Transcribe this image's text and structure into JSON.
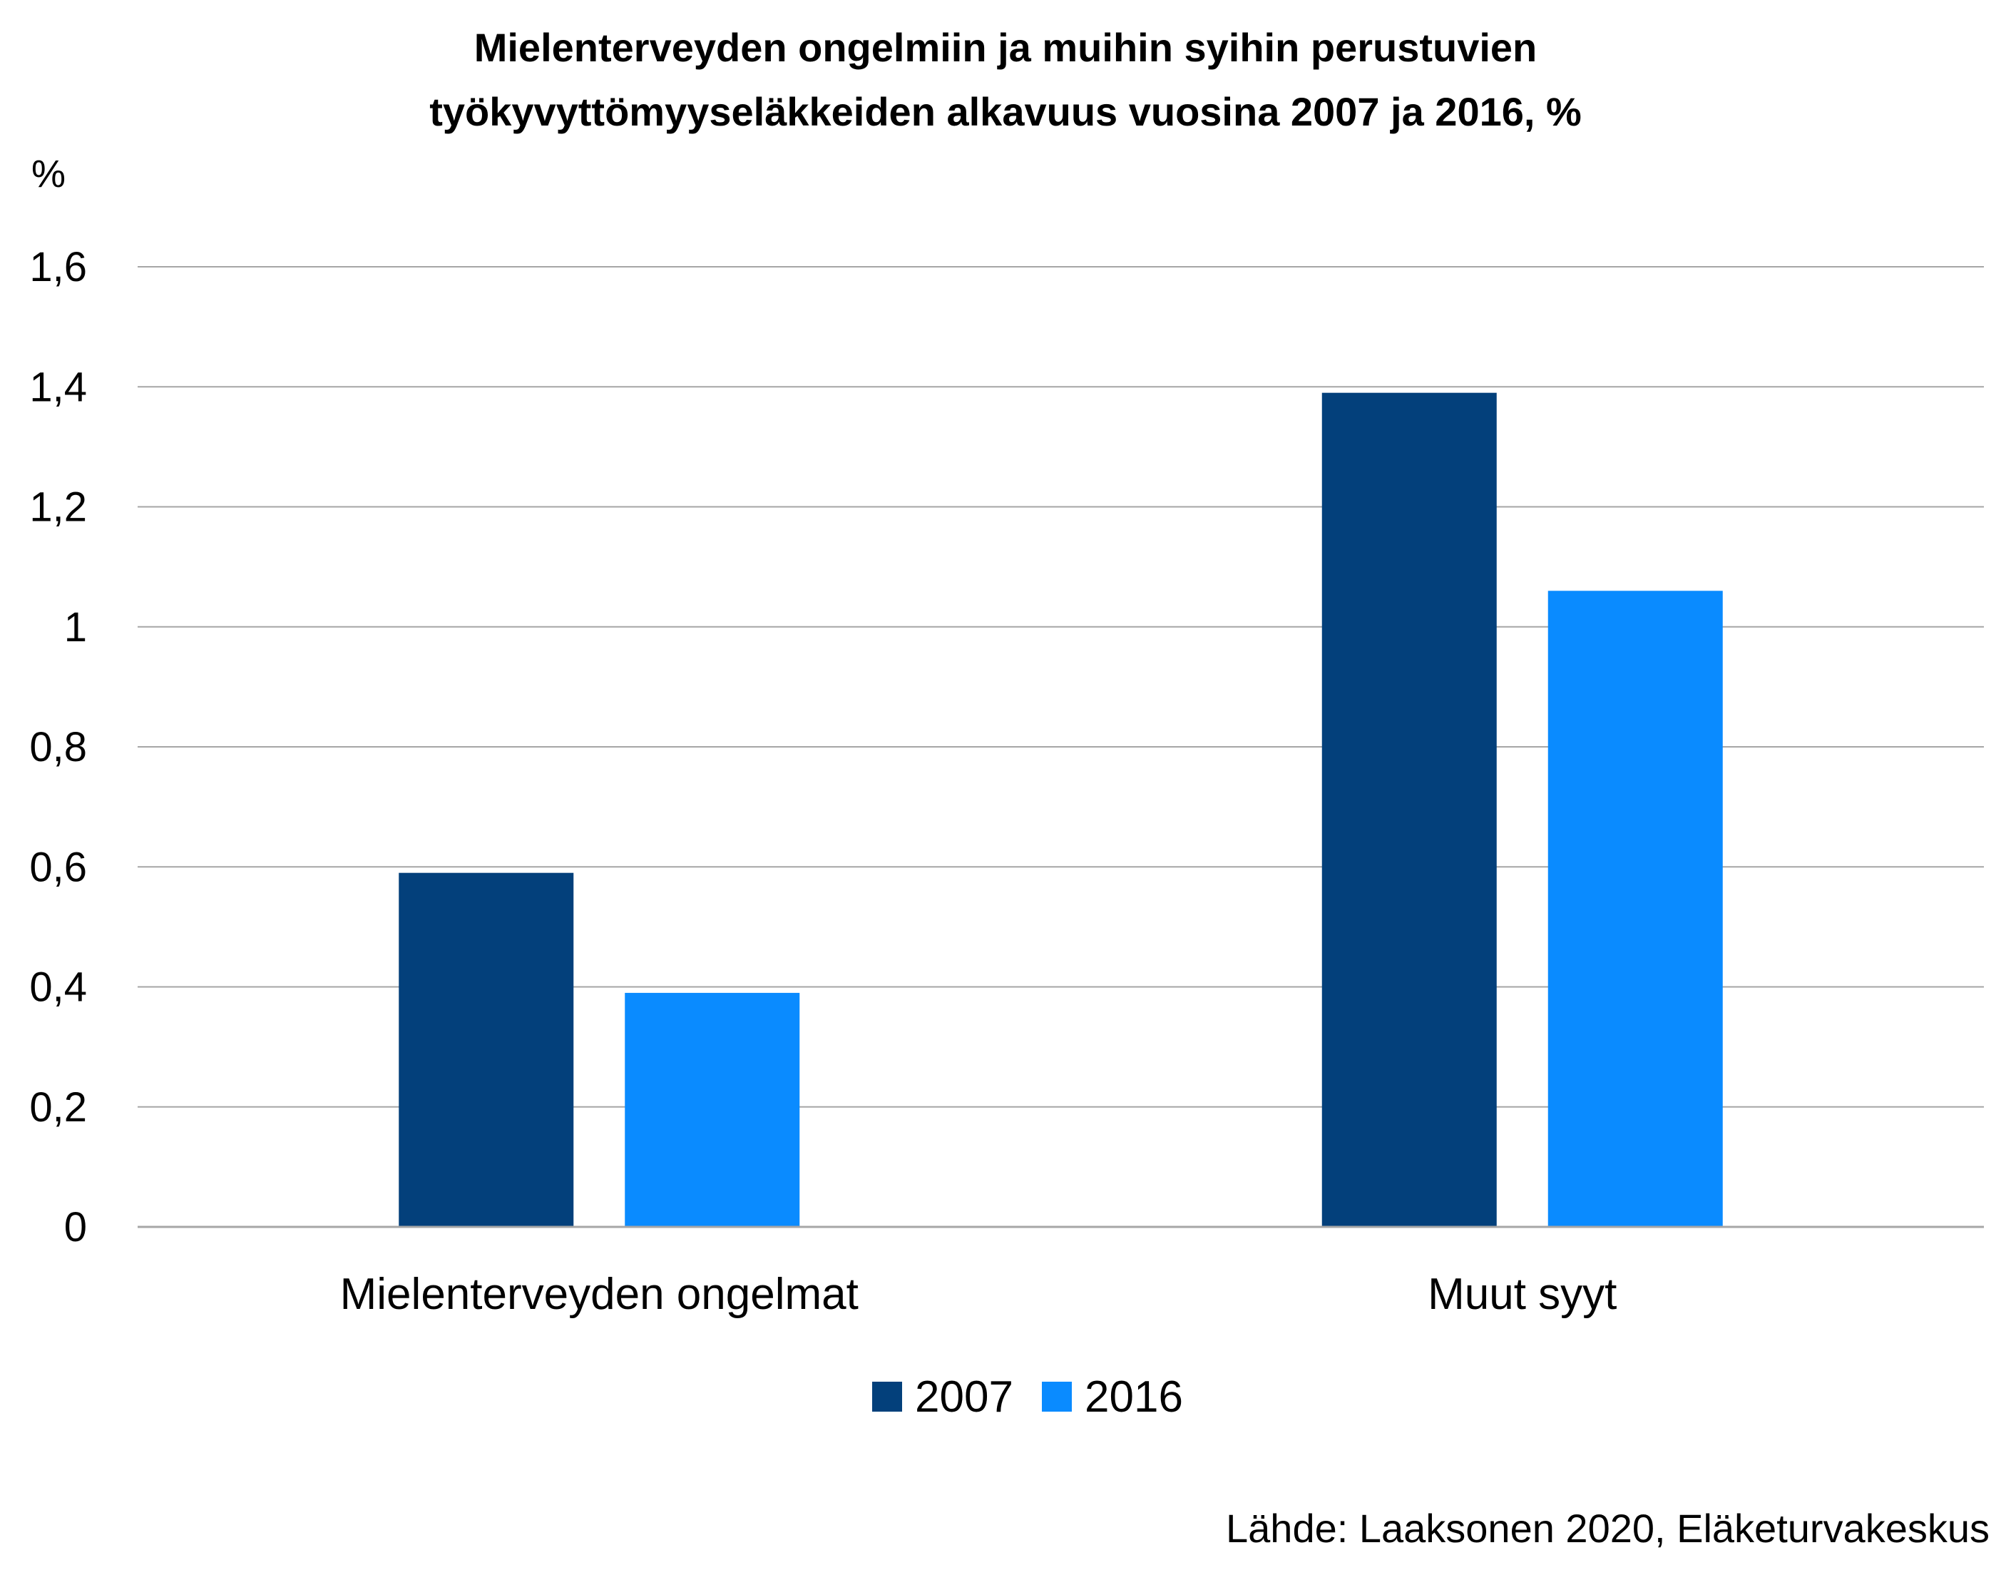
{
  "chart_data": {
    "type": "bar",
    "title_lines": [
      "Mielenterveyden ongelmiin ja muihin syihin perustuvien",
      "työkyvyttömyyseläkkeiden alkavuus vuosina 2007 ja 2016, %"
    ],
    "y_unit_label": "%",
    "categories": [
      "Mielenterveyden ongelmat",
      "Muut syyt"
    ],
    "series": [
      {
        "name": "2007",
        "color": "#03407B",
        "values": [
          0.59,
          1.39
        ]
      },
      {
        "name": "2016",
        "color": "#0A8BFF",
        "values": [
          0.39,
          1.06
        ]
      }
    ],
    "ylim": [
      0,
      1.6
    ],
    "yticks": [
      {
        "value": 0,
        "label": "0"
      },
      {
        "value": 0.2,
        "label": "0,2"
      },
      {
        "value": 0.4,
        "label": "0,4"
      },
      {
        "value": 0.6,
        "label": "0,6"
      },
      {
        "value": 0.8,
        "label": "0,8"
      },
      {
        "value": 1,
        "label": "1"
      },
      {
        "value": 1.2,
        "label": "1,2"
      },
      {
        "value": 1.4,
        "label": "1,4"
      },
      {
        "value": 1.6,
        "label": "1,6"
      }
    ],
    "grid": true,
    "legend_position": "bottom",
    "source": "Lähde: Laaksonen 2020, Eläketurvakeskus",
    "gridline_color": "#A6A6A6"
  }
}
